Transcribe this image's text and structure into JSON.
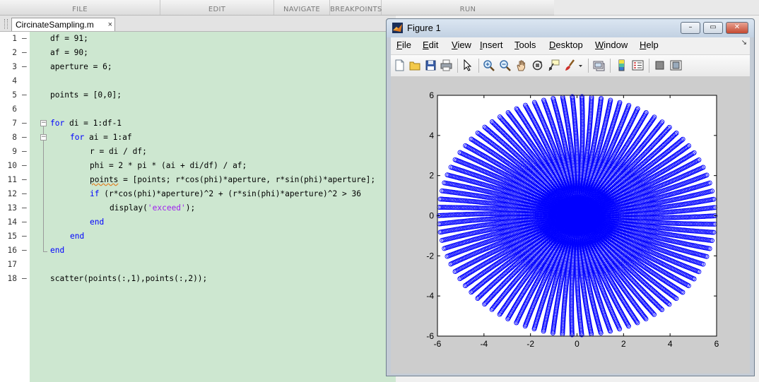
{
  "ribbon": {
    "sections": [
      "FILE",
      "EDIT",
      "NAVIGATE",
      "BREAKPOINTS",
      "RUN"
    ]
  },
  "editor": {
    "tab_label": "CircinateSampling.m",
    "tab_close": "×",
    "lines": [
      {
        "n": "1",
        "dash": "–",
        "code": "df = 91;"
      },
      {
        "n": "2",
        "dash": "–",
        "code": "af = 90;"
      },
      {
        "n": "3",
        "dash": "–",
        "code": "aperture = 6;"
      },
      {
        "n": "4",
        "dash": "",
        "code": ""
      },
      {
        "n": "5",
        "dash": "–",
        "code": "points = [0,0];"
      },
      {
        "n": "6",
        "dash": "",
        "code": ""
      },
      {
        "n": "7",
        "dash": "–",
        "kw": "for",
        "code": " di = 1:df-1"
      },
      {
        "n": "8",
        "dash": "–",
        "kw": "for",
        "code": " ai = 1:af"
      },
      {
        "n": "9",
        "dash": "–",
        "code": "r = di / df;"
      },
      {
        "n": "10",
        "dash": "–",
        "code": "phi = 2 * pi * (ai + di/df) / af;"
      },
      {
        "n": "11",
        "dash": "–",
        "warnword": "points",
        "code": " = [points; r*cos(phi)*aperture, r*sin(phi)*aperture];"
      },
      {
        "n": "12",
        "dash": "–",
        "kw": "if",
        "code": " (r*cos(phi)*aperture)^2 + (r*sin(phi)*aperture)^2 > 36"
      },
      {
        "n": "13",
        "dash": "–",
        "code": "display(",
        "str": "'exceed'",
        "code_after": ");"
      },
      {
        "n": "14",
        "dash": "–",
        "kw": "end",
        "code": ""
      },
      {
        "n": "15",
        "dash": "–",
        "kw": "end",
        "code": ""
      },
      {
        "n": "16",
        "dash": "–",
        "kw": "end",
        "code": ""
      },
      {
        "n": "17",
        "dash": "",
        "code": ""
      },
      {
        "n": "18",
        "dash": "–",
        "code": "scatter(points(:,1),points(:,2));"
      }
    ]
  },
  "figure": {
    "title": "Figure 1",
    "window_buttons": {
      "minimize": "–",
      "maximize": "▭",
      "close": "✕"
    },
    "menu": [
      {
        "u": "F",
        "rest": "ile"
      },
      {
        "u": "E",
        "rest": "dit"
      },
      {
        "u": "V",
        "rest": "iew"
      },
      {
        "u": "I",
        "rest": "nsert"
      },
      {
        "u": "T",
        "rest": "ools"
      },
      {
        "u": "D",
        "rest": "esktop"
      },
      {
        "u": "W",
        "rest": "indow"
      },
      {
        "u": "H",
        "rest": "elp"
      }
    ],
    "menu_overflow": "↘",
    "toolbar_icons": [
      "new-figure-icon",
      "open-file-icon",
      "save-icon",
      "print-icon",
      "pointer-icon",
      "zoom-in-icon",
      "zoom-out-icon",
      "pan-hand-icon",
      "rotate-3d-icon",
      "data-cursor-icon",
      "brush-icon",
      "brush-dropdown-icon",
      "link-plot-icon",
      "colorbar-icon",
      "legend-icon",
      "hide-plot-tools-icon",
      "show-plot-tools-icon"
    ]
  },
  "chart_data": {
    "type": "scatter",
    "title": "",
    "xlabel": "",
    "ylabel": "",
    "xlim": [
      -6,
      6
    ],
    "ylim": [
      -6,
      6
    ],
    "xticks": [
      -6,
      -4,
      -2,
      0,
      2,
      4,
      6
    ],
    "yticks": [
      -6,
      -4,
      -2,
      0,
      2,
      4,
      6
    ],
    "marker": "open-circle",
    "color": "#0000ff",
    "grid": false,
    "generator": {
      "df": 91,
      "af": 90,
      "aperture": 6,
      "include_origin": true
    },
    "sample_points": [
      [
        0,
        0
      ],
      [
        0.0659,
        0.0046
      ],
      [
        3.0,
        0.0
      ],
      [
        -3.0,
        0.0
      ],
      [
        0.0,
        3.0
      ],
      [
        0.0,
        -3.0
      ],
      [
        5.934,
        0.415
      ],
      [
        -5.934,
        -0.415
      ],
      [
        0.415,
        -5.934
      ],
      [
        -0.415,
        5.934
      ]
    ]
  }
}
